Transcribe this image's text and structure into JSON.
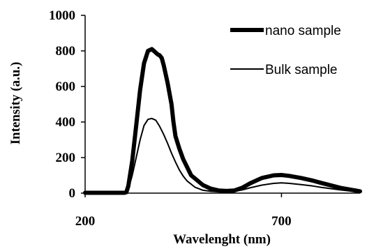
{
  "chart_data": {
    "type": "line",
    "title": "",
    "xlabel": "Wavelenght (nm)",
    "ylabel": "Intensity (a.u.)",
    "xlim": [
      200,
      900
    ],
    "ylim": [
      0,
      1000
    ],
    "x_ticks": [
      200,
      700
    ],
    "y_ticks": [
      0,
      200,
      400,
      600,
      800,
      1000
    ],
    "legend": "top-right",
    "grid": false,
    "series": [
      {
        "name": "nano sample",
        "color": "#000000",
        "line_width": "thick",
        "x": [
          200,
          250,
          300,
          305,
          310,
          320,
          330,
          340,
          350,
          360,
          370,
          375,
          380,
          385,
          390,
          395,
          400,
          410,
          420,
          425,
          430,
          440,
          450,
          470,
          500,
          520,
          540,
          560,
          580,
          600,
          620,
          650,
          680,
          700,
          720,
          750,
          780,
          800,
          850,
          900
        ],
        "y": [
          2,
          2,
          2,
          5,
          40,
          180,
          380,
          580,
          730,
          800,
          810,
          800,
          790,
          780,
          775,
          760,
          720,
          620,
          500,
          400,
          320,
          250,
          190,
          100,
          45,
          25,
          15,
          12,
          15,
          30,
          55,
          85,
          100,
          102,
          97,
          85,
          70,
          58,
          30,
          10
        ]
      },
      {
        "name": "Bulk sample",
        "color": "#000000",
        "line_width": "thin",
        "x": [
          200,
          250,
          300,
          305,
          310,
          320,
          330,
          340,
          350,
          360,
          370,
          380,
          390,
          400,
          410,
          420,
          430,
          440,
          450,
          460,
          480,
          500,
          520,
          540,
          560,
          580,
          600,
          620,
          650,
          680,
          700,
          720,
          750,
          780,
          800,
          850,
          900
        ],
        "y": [
          2,
          2,
          2,
          4,
          20,
          100,
          200,
          300,
          380,
          415,
          420,
          410,
          375,
          330,
          280,
          225,
          175,
          130,
          95,
          68,
          33,
          16,
          10,
          8,
          8,
          10,
          18,
          30,
          45,
          55,
          58,
          55,
          48,
          40,
          33,
          18,
          6
        ]
      }
    ]
  }
}
